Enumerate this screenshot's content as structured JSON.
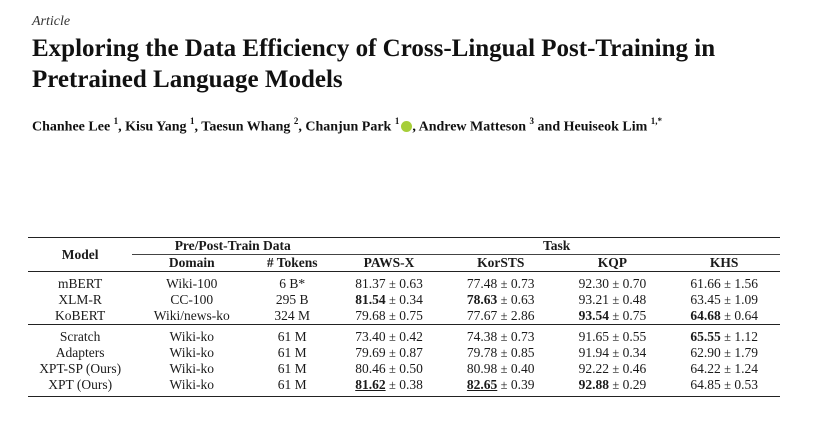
{
  "article_label": "Article",
  "title": "Exploring the Data Efficiency of Cross-Lingual Post-Training in Pretrained Language Models",
  "authors": {
    "a1": "Chanhee Lee",
    "a1_sup": "1",
    "a2": "Kisu Yang",
    "a2_sup": "1",
    "a3": "Taesun Whang",
    "a3_sup": "2",
    "a4": "Chanjun Park",
    "a4_sup": "1",
    "a5": "Andrew Matteson",
    "a5_sup": "3",
    "a6_prefix": "and",
    "a6": "Heuiseok Lim",
    "a6_sup": "1,*"
  },
  "table": {
    "header": {
      "model": "Model",
      "group_data": "Pre/Post-Train Data",
      "group_task": "Task",
      "domain": "Domain",
      "tokens": "# Tokens",
      "tasks": [
        "PAWS-X",
        "KorSTS",
        "KQP",
        "KHS"
      ]
    },
    "rows": [
      {
        "model": "mBERT",
        "domain": "Wiki-100",
        "tokens": "6 B*",
        "v": [
          [
            "81.37",
            "0.63"
          ],
          [
            "77.48",
            "0.73"
          ],
          [
            "92.30",
            "0.70"
          ],
          [
            "61.66",
            "1.56"
          ]
        ]
      },
      {
        "model": "XLM-R",
        "domain": "CC-100",
        "tokens": "295 B",
        "v": [
          [
            "81.54",
            "0.34"
          ],
          [
            "78.63",
            "0.63"
          ],
          [
            "93.21",
            "0.48"
          ],
          [
            "63.45",
            "1.09"
          ]
        ]
      },
      {
        "model": "KoBERT",
        "domain": "Wiki/news-ko",
        "tokens": "324 M",
        "v": [
          [
            "79.68",
            "0.75"
          ],
          [
            "77.67",
            "2.86"
          ],
          [
            "93.54",
            "0.75"
          ],
          [
            "64.68",
            "0.64"
          ]
        ]
      },
      {
        "model": "Scratch",
        "domain": "Wiki-ko",
        "tokens": "61 M",
        "v": [
          [
            "73.40",
            "0.42"
          ],
          [
            "74.38",
            "0.73"
          ],
          [
            "91.65",
            "0.55"
          ],
          [
            "65.55",
            "1.12"
          ]
        ]
      },
      {
        "model": "Adapters",
        "domain": "Wiki-ko",
        "tokens": "61 M",
        "v": [
          [
            "79.69",
            "0.87"
          ],
          [
            "79.78",
            "0.85"
          ],
          [
            "91.94",
            "0.34"
          ],
          [
            "62.90",
            "1.79"
          ]
        ]
      },
      {
        "model": "XPT-SP (Ours)",
        "domain": "Wiki-ko",
        "tokens": "61 M",
        "v": [
          [
            "80.46",
            "0.50"
          ],
          [
            "80.98",
            "0.40"
          ],
          [
            "92.22",
            "0.46"
          ],
          [
            "64.22",
            "1.24"
          ]
        ]
      },
      {
        "model": "XPT (Ours)",
        "domain": "Wiki-ko",
        "tokens": "61 M",
        "v": [
          [
            "81.62",
            "0.38"
          ],
          [
            "82.65",
            "0.39"
          ],
          [
            "92.88",
            "0.29"
          ],
          [
            "64.85",
            "0.53"
          ]
        ]
      }
    ],
    "pm": "±"
  }
}
